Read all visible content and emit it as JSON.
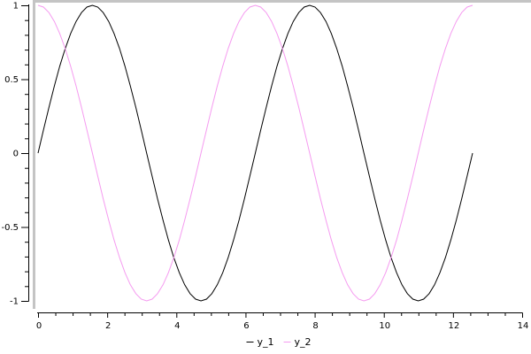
{
  "window": {
    "background": "#FFFFFF"
  },
  "colors": {
    "plot_border_gray": "#C4C4C4",
    "axis_black": "#000000",
    "series1_black": "#000000",
    "series2_pink": "#F59BF0"
  },
  "chart_data": {
    "type": "line",
    "title": "",
    "xlabel": "",
    "ylabel": "",
    "xlim": [
      0,
      14
    ],
    "ylim": [
      -1,
      1
    ],
    "grid": false,
    "legend_position": "bottom-center",
    "x_axis": {
      "major_tick_values": [
        0,
        2,
        4,
        6,
        8,
        10,
        12,
        14
      ],
      "major_tick_labels": [
        "0",
        "2",
        "4",
        "6",
        "8",
        "10",
        "12",
        "14"
      ],
      "minor_tick_step": 0.5
    },
    "y_axis": {
      "major_tick_values": [
        1,
        0.5,
        0,
        -0.5,
        -1
      ],
      "major_tick_labels": [
        "1",
        "0.5",
        "0",
        "-0.5",
        "-1"
      ],
      "minor_tick_step": 0.1
    },
    "x_start": 0,
    "x_end": 12.566,
    "series": [
      {
        "name": "y_1",
        "color": "#000000",
        "function": "sin(x)",
        "values": [
          0,
          0.156,
          0.309,
          0.454,
          0.588,
          0.707,
          0.809,
          0.891,
          0.951,
          0.988,
          1,
          0.988,
          0.951,
          0.891,
          0.809,
          0.707,
          0.588,
          0.454,
          0.309,
          0.156,
          0,
          -0.156,
          -0.309,
          -0.454,
          -0.588,
          -0.707,
          -0.809,
          -0.891,
          -0.951,
          -0.988,
          -1,
          -0.988,
          -0.951,
          -0.891,
          -0.809,
          -0.707,
          -0.588,
          -0.454,
          -0.309,
          -0.156,
          0,
          0.156,
          0.309,
          0.454,
          0.588,
          0.707,
          0.809,
          0.891,
          0.951,
          0.988,
          1,
          0.988,
          0.951,
          0.891,
          0.809,
          0.707,
          0.588,
          0.454,
          0.309,
          0.156,
          0,
          -0.156,
          -0.309,
          -0.454,
          -0.588,
          -0.707,
          -0.809,
          -0.891,
          -0.951,
          -0.988,
          -1,
          -0.988,
          -0.951,
          -0.891,
          -0.809,
          -0.707,
          -0.588,
          -0.454,
          -0.309,
          -0.156,
          0
        ]
      },
      {
        "name": "y_2",
        "color": "#F59BF0",
        "function": "cos(x)",
        "values": [
          1,
          0.988,
          0.951,
          0.891,
          0.809,
          0.707,
          0.588,
          0.454,
          0.309,
          0.156,
          0,
          -0.156,
          -0.309,
          -0.454,
          -0.588,
          -0.707,
          -0.809,
          -0.891,
          -0.951,
          -0.988,
          -1,
          -0.988,
          -0.951,
          -0.891,
          -0.809,
          -0.707,
          -0.588,
          -0.454,
          -0.309,
          -0.156,
          0,
          0.156,
          0.309,
          0.454,
          0.588,
          0.707,
          0.809,
          0.891,
          0.951,
          0.988,
          1,
          0.988,
          0.951,
          0.891,
          0.809,
          0.707,
          0.588,
          0.454,
          0.309,
          0.156,
          0,
          -0.156,
          -0.309,
          -0.454,
          -0.588,
          -0.707,
          -0.809,
          -0.891,
          -0.951,
          -0.988,
          -1,
          -0.988,
          -0.951,
          -0.891,
          -0.809,
          -0.707,
          -0.588,
          -0.454,
          -0.309,
          -0.156,
          0,
          0.156,
          0.309,
          0.454,
          0.588,
          0.707,
          0.809,
          0.891,
          0.951,
          0.988,
          1
        ]
      }
    ]
  }
}
